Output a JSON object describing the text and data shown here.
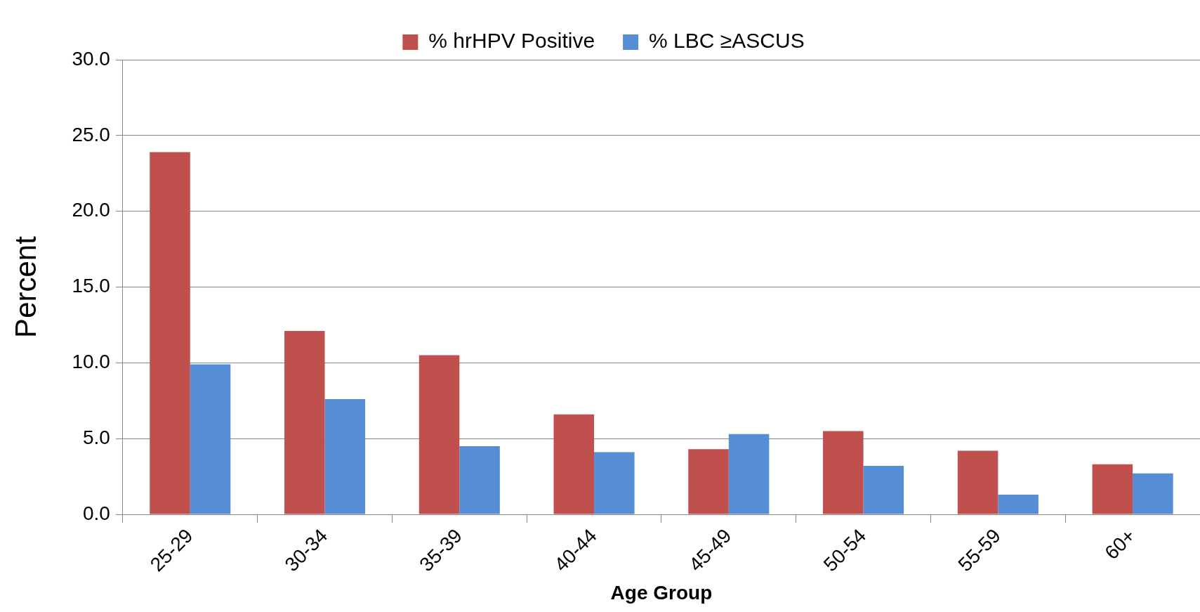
{
  "chart_data": {
    "type": "bar",
    "xlabel": "Age Group",
    "ylabel": "Percent",
    "categories": [
      "25-29",
      "30-34",
      "35-39",
      "40-44",
      "45-49",
      "50-54",
      "55-59",
      "60+"
    ],
    "series": [
      {
        "name": "% hrHPV Positive",
        "color": "#c0504d",
        "values": [
          23.9,
          12.1,
          10.5,
          6.6,
          4.3,
          5.5,
          4.2,
          3.3
        ]
      },
      {
        "name": "% LBC ≥ASCUS",
        "color": "#558ed5",
        "values": [
          9.9,
          7.6,
          4.5,
          4.1,
          5.3,
          3.2,
          1.3,
          2.7
        ]
      }
    ],
    "ylim": [
      0,
      30
    ],
    "yticks": [
      {
        "value": 0,
        "label": "0.0"
      },
      {
        "value": 5,
        "label": "5.0"
      },
      {
        "value": 10,
        "label": "10.0"
      },
      {
        "value": 15,
        "label": "15.0"
      },
      {
        "value": 20,
        "label": "20.0"
      },
      {
        "value": 25,
        "label": "25.0"
      },
      {
        "value": 30,
        "label": "30.0"
      }
    ],
    "grid": "y",
    "legend": "top"
  }
}
